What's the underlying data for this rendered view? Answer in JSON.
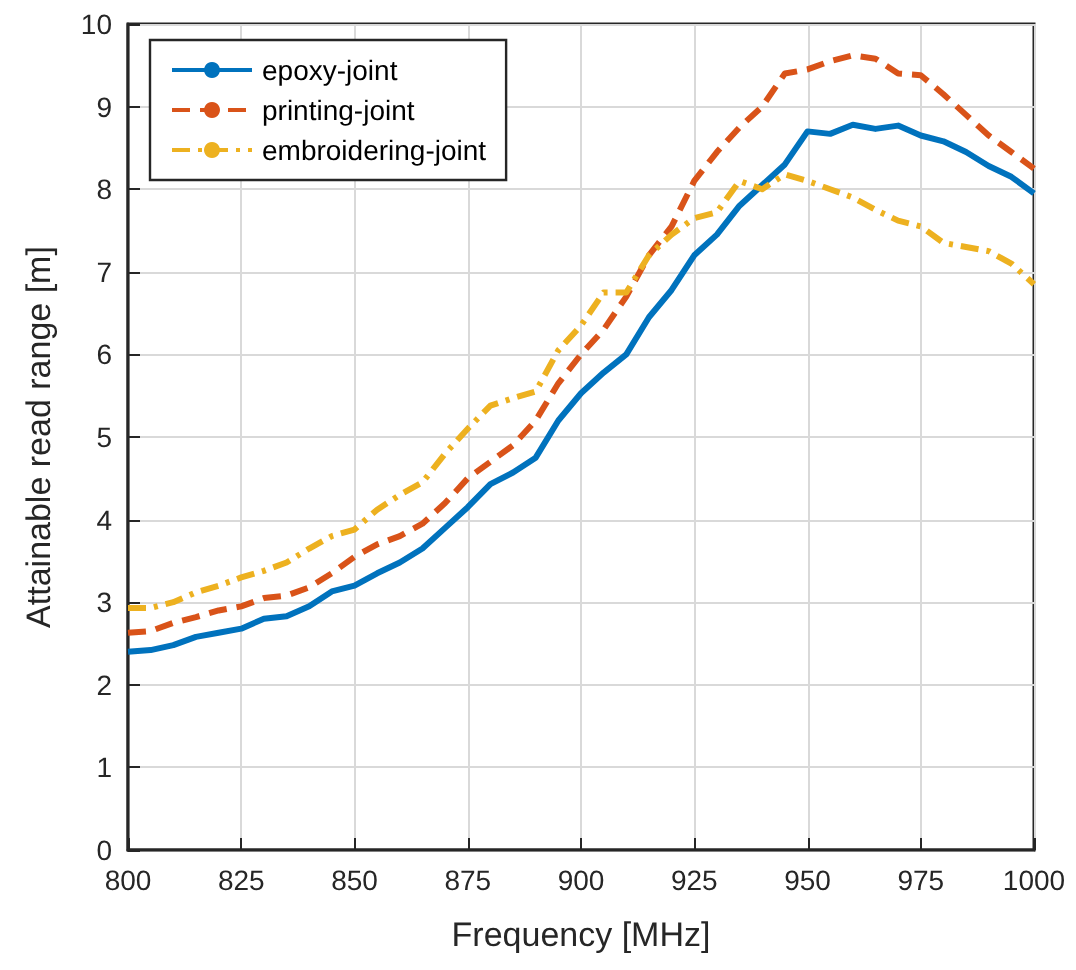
{
  "chart_data": {
    "type": "line",
    "xlabel": "Frequency [MHz]",
    "ylabel": "Attainable read range [m]",
    "x": [
      800,
      805,
      810,
      815,
      820,
      825,
      830,
      835,
      840,
      845,
      850,
      855,
      860,
      865,
      870,
      875,
      880,
      885,
      890,
      895,
      900,
      905,
      910,
      915,
      920,
      925,
      930,
      935,
      940,
      945,
      950,
      955,
      960,
      965,
      970,
      975,
      980,
      985,
      990,
      995,
      1000
    ],
    "series": [
      {
        "name": "epoxy-joint",
        "color": "#0072bd",
        "line_style": "solid",
        "values": [
          2.4,
          2.42,
          2.48,
          2.58,
          2.63,
          2.68,
          2.8,
          2.83,
          2.95,
          3.13,
          3.2,
          3.35,
          3.48,
          3.65,
          3.9,
          4.15,
          4.43,
          4.57,
          4.75,
          5.2,
          5.53,
          5.78,
          6.0,
          6.45,
          6.78,
          7.2,
          7.45,
          7.8,
          8.05,
          8.3,
          8.7,
          8.67,
          8.78,
          8.73,
          8.77,
          8.65,
          8.58,
          8.45,
          8.28,
          8.15,
          7.95
        ]
      },
      {
        "name": "printing-joint",
        "color": "#d95319",
        "line_style": "dashed",
        "values": [
          2.63,
          2.65,
          2.75,
          2.82,
          2.9,
          2.95,
          3.05,
          3.08,
          3.18,
          3.35,
          3.55,
          3.7,
          3.8,
          3.95,
          4.2,
          4.5,
          4.7,
          4.9,
          5.2,
          5.65,
          6.0,
          6.3,
          6.7,
          7.2,
          7.55,
          8.1,
          8.45,
          8.75,
          9.0,
          9.4,
          9.45,
          9.55,
          9.62,
          9.58,
          9.4,
          9.38,
          9.15,
          8.9,
          8.65,
          8.45,
          8.25
        ]
      },
      {
        "name": "embroidering-joint",
        "color": "#edb120",
        "line_style": "dotted",
        "values": [
          2.93,
          2.93,
          3.0,
          3.12,
          3.2,
          3.3,
          3.38,
          3.48,
          3.65,
          3.8,
          3.88,
          4.12,
          4.3,
          4.45,
          4.8,
          5.1,
          5.38,
          5.47,
          5.55,
          6.05,
          6.35,
          6.75,
          6.75,
          7.2,
          7.45,
          7.65,
          7.72,
          8.1,
          8.0,
          8.18,
          8.1,
          8.0,
          7.9,
          7.75,
          7.62,
          7.55,
          7.35,
          7.3,
          7.25,
          7.1,
          6.85
        ]
      }
    ],
    "xlim": [
      800,
      1000
    ],
    "xticks": [
      800,
      825,
      850,
      875,
      900,
      925,
      950,
      975,
      1000
    ],
    "ylim": [
      0,
      10
    ],
    "yticks": [
      0,
      1,
      2,
      3,
      4,
      5,
      6,
      7,
      8,
      9,
      10
    ],
    "grid": true,
    "legend": "top left",
    "marker": "none"
  }
}
